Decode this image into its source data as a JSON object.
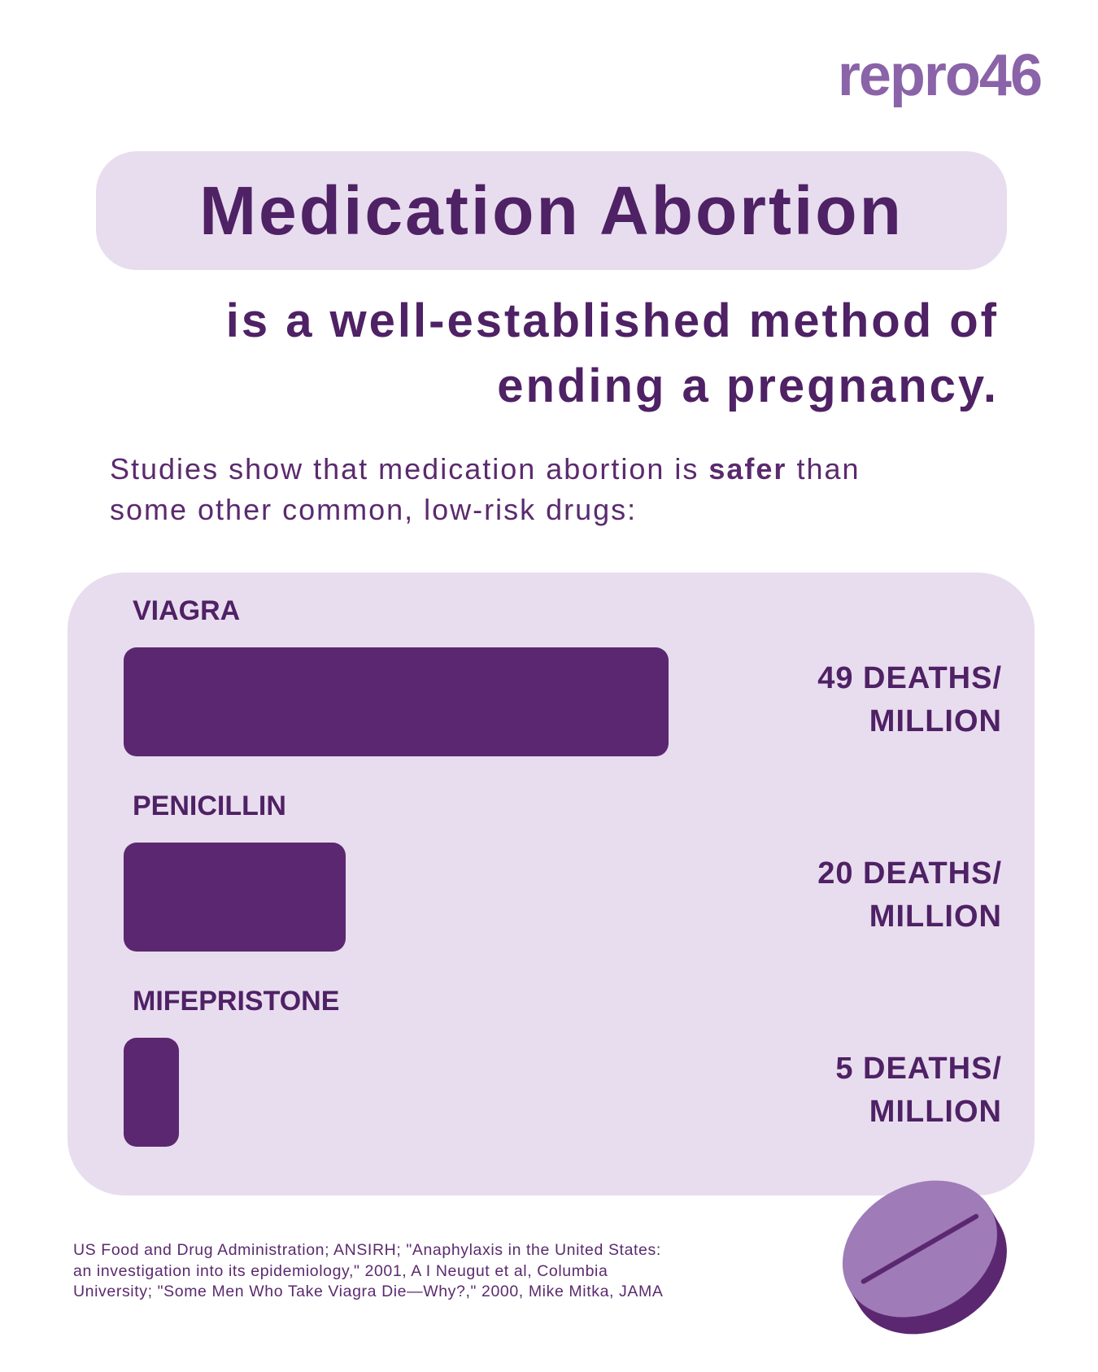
{
  "brand": "repro46",
  "title": "Medication Abortion",
  "subtitle": "is a well-established method of ending a pregnancy.",
  "intro": [
    "Studies show that medication abortion is ",
    "safer",
    " than some other common, low-risk drugs:"
  ],
  "chart_data": {
    "type": "bar",
    "orientation": "horizontal",
    "color": "#5c2771",
    "categories": [
      "VIAGRA",
      "PENICILLIN",
      "MIFEPRISTONE"
    ],
    "values": [
      49,
      20,
      5
    ],
    "value_labels": [
      "49 DEATHS/ MILLION",
      "20 DEATHS/ MILLION",
      "5 DEATHS/ MILLION"
    ]
  },
  "source": "US Food and Drug Administration; ANSIRH; \"Anaphylaxis in the United States: an investigation into its epidemiology,\" 2001, A I Neugut et al, Columbia University; \"Some Men Who Take Viagra Die—Why?,\" 2000, Mike Mitka, JAMA"
}
